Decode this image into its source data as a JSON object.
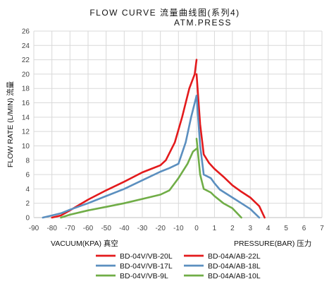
{
  "chart_data": {
    "type": "line",
    "title": "FLOW CURVE 流量曲线图(系列4)",
    "subtitle": "ATM.PRESS",
    "ylabel": "FLOW RATE (L/MIN) 流量",
    "xlabel_left": "VACUUM(KPA) 真空",
    "xlabel_right": "PRESSURE(BAR) 压力",
    "grid": true,
    "legend_position": "bottom",
    "y_range": [
      0,
      26
    ],
    "y_ticks": [
      "0",
      "2",
      "4",
      "6",
      "8",
      "10",
      "12",
      "14",
      "16",
      "18",
      "20",
      "22",
      "24",
      "26"
    ],
    "x_ticks_vacuum": [
      "-90",
      "-80",
      "-70",
      "-60",
      "-50",
      "-40",
      "-30",
      "-20",
      "-10",
      "0"
    ],
    "x_ticks_pressure": [
      "0",
      "1",
      "2",
      "3",
      "4",
      "5",
      "6",
      "7"
    ],
    "x_axis_note": "Left half: vacuum in kPa (-90 to 0), ticks every 10 kPa. Right half: pressure in bar (0 to 7), ticks every 1 bar. Negative x values below are kPa, positive x values are bar.",
    "series": [
      {
        "name": "BD-04V/VB-20L",
        "color": "#e31a1c",
        "side": "vacuum",
        "points": [
          [
            -80,
            0
          ],
          [
            -75,
            0.3
          ],
          [
            -70,
            1
          ],
          [
            -60,
            2.5
          ],
          [
            -50,
            3.8
          ],
          [
            -40,
            5
          ],
          [
            -30,
            6.3
          ],
          [
            -25,
            6.8
          ],
          [
            -20,
            7.3
          ],
          [
            -17,
            8
          ],
          [
            -12,
            10.5
          ],
          [
            -8,
            14
          ],
          [
            -4,
            18
          ],
          [
            -1,
            20
          ],
          [
            0,
            22
          ]
        ]
      },
      {
        "name": "BD-04A/AB-22L",
        "color": "#e31a1c",
        "side": "pressure",
        "points": [
          [
            0,
            20
          ],
          [
            0.2,
            13
          ],
          [
            0.4,
            8.8
          ],
          [
            0.7,
            7.6
          ],
          [
            1,
            6.8
          ],
          [
            1.5,
            5.7
          ],
          [
            2,
            4.5
          ],
          [
            2.5,
            3.6
          ],
          [
            3,
            2.8
          ],
          [
            3.5,
            1.6
          ],
          [
            3.8,
            0
          ]
        ]
      },
      {
        "name": "BD-04V/VB-17L",
        "color": "#5b8fbf",
        "side": "vacuum",
        "points": [
          [
            -85,
            0
          ],
          [
            -80,
            0.3
          ],
          [
            -75,
            0.6
          ],
          [
            -70,
            1.1
          ],
          [
            -60,
            2
          ],
          [
            -50,
            3
          ],
          [
            -40,
            4
          ],
          [
            -30,
            5.2
          ],
          [
            -20,
            6.4
          ],
          [
            -15,
            6.9
          ],
          [
            -10,
            7.5
          ],
          [
            -6,
            10.5
          ],
          [
            -3,
            14
          ],
          [
            0,
            17
          ]
        ]
      },
      {
        "name": "BD-04A/AB-18L",
        "color": "#5b8fbf",
        "side": "pressure",
        "points": [
          [
            0,
            17
          ],
          [
            0.2,
            10
          ],
          [
            0.4,
            6
          ],
          [
            0.8,
            5.5
          ],
          [
            1,
            4.8
          ],
          [
            1.3,
            3.9
          ],
          [
            2,
            2.8
          ],
          [
            2.5,
            2
          ],
          [
            3,
            1.2
          ],
          [
            3.5,
            0
          ]
        ]
      },
      {
        "name": "BD-04V/VB-9L",
        "color": "#70ad47",
        "side": "vacuum",
        "points": [
          [
            -75,
            0
          ],
          [
            -70,
            0.4
          ],
          [
            -60,
            1
          ],
          [
            -50,
            1.5
          ],
          [
            -40,
            2
          ],
          [
            -30,
            2.6
          ],
          [
            -20,
            3.2
          ],
          [
            -15,
            3.8
          ],
          [
            -10,
            5.5
          ],
          [
            -5,
            7.5
          ],
          [
            -2,
            9.2
          ],
          [
            0,
            9.6
          ]
        ]
      },
      {
        "name": "BD-04A/AB-10L",
        "color": "#70ad47",
        "side": "pressure",
        "points": [
          [
            0,
            11
          ],
          [
            0.2,
            6
          ],
          [
            0.4,
            4
          ],
          [
            0.8,
            3.5
          ],
          [
            1,
            3
          ],
          [
            1.5,
            2
          ],
          [
            2,
            1.3
          ],
          [
            2.5,
            0
          ]
        ]
      }
    ]
  }
}
